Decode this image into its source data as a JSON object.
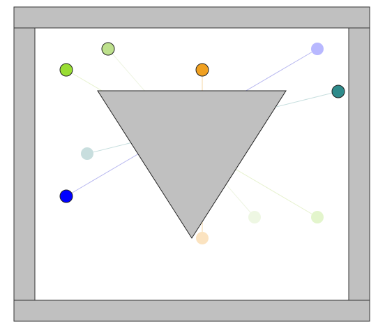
{
  "colors": {
    "background": "#ffffff",
    "wall_fill": "#c0c0c0",
    "wall_stroke": "#333333",
    "triangle_fill": "#c0c0c0",
    "triangle_stroke": "#222222",
    "dot_stroke": "#222222"
  },
  "scene": {
    "walls": [
      "top-wall",
      "right-wall",
      "bottom-wall",
      "left-wall"
    ],
    "obstacle": "inverted-triangle",
    "dot_pairs": [
      {
        "name": "blue-pair",
        "color": "#0000ff",
        "dim_color": "#bbbbff"
      },
      {
        "name": "teal-pair",
        "color": "#2e8b8b",
        "dim_color": "#c8dede"
      },
      {
        "name": "orange-pair",
        "color": "#f0a020",
        "dim_color": "#fbe3c0"
      },
      {
        "name": "lime-pair",
        "color": "#99dd33",
        "dim_color": "#e3f5cc"
      },
      {
        "name": "light-green-pair",
        "color": "#bbe088",
        "dim_color": "#eef7e3"
      }
    ]
  }
}
